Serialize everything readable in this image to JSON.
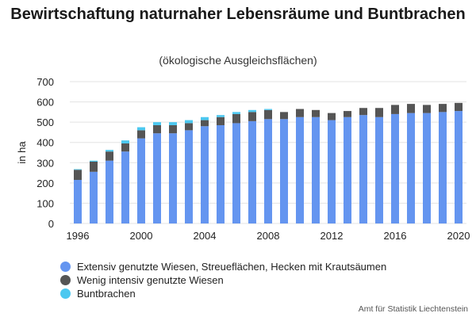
{
  "chart_data": {
    "type": "bar",
    "stacked": true,
    "title": "Bewirtschaftung naturnaher Lebensräume und Buntbrachen",
    "subtitle": "(ökologische Ausgleichsflächen)",
    "ylabel": "in ha",
    "xlabel": "",
    "ylim": [
      0,
      700
    ],
    "yticks": [
      0,
      100,
      200,
      300,
      400,
      500,
      600,
      700
    ],
    "xtick_labels": [
      "1996",
      "2000",
      "2004",
      "2008",
      "2012",
      "2016",
      "2020"
    ],
    "grid": true,
    "legend_position": "bottom",
    "categories": [
      "1996",
      "1997",
      "1998",
      "1999",
      "2000",
      "2001",
      "2002",
      "2003",
      "2004",
      "2005",
      "2006",
      "2007",
      "2008",
      "2009",
      "2010",
      "2011",
      "2012",
      "2013",
      "2014",
      "2015",
      "2016",
      "2017",
      "2018",
      "2019",
      "2020"
    ],
    "series": [
      {
        "name": "Extensiv genutzte Wiesen, Streueflächen, Hecken mit Krautsäumen",
        "color": "#6495f0",
        "values": [
          215,
          255,
          310,
          355,
          420,
          445,
          445,
          460,
          480,
          485,
          495,
          505,
          515,
          515,
          525,
          525,
          510,
          525,
          535,
          525,
          540,
          545,
          545,
          550,
          555
        ]
      },
      {
        "name": "Wenig intensiv genutzte Wiesen",
        "color": "#555555",
        "values": [
          50,
          50,
          45,
          40,
          40,
          40,
          40,
          35,
          30,
          40,
          45,
          45,
          45,
          35,
          40,
          35,
          35,
          30,
          35,
          45,
          45,
          45,
          40,
          40,
          40
        ]
      },
      {
        "name": "Buntbrachen",
        "color": "#4cc8f0",
        "values": [
          3,
          5,
          8,
          15,
          15,
          15,
          15,
          15,
          15,
          10,
          10,
          10,
          5,
          0,
          0,
          0,
          0,
          0,
          0,
          0,
          0,
          0,
          0,
          0,
          0
        ]
      }
    ]
  },
  "source": "Amt für Statistik Liechtenstein"
}
